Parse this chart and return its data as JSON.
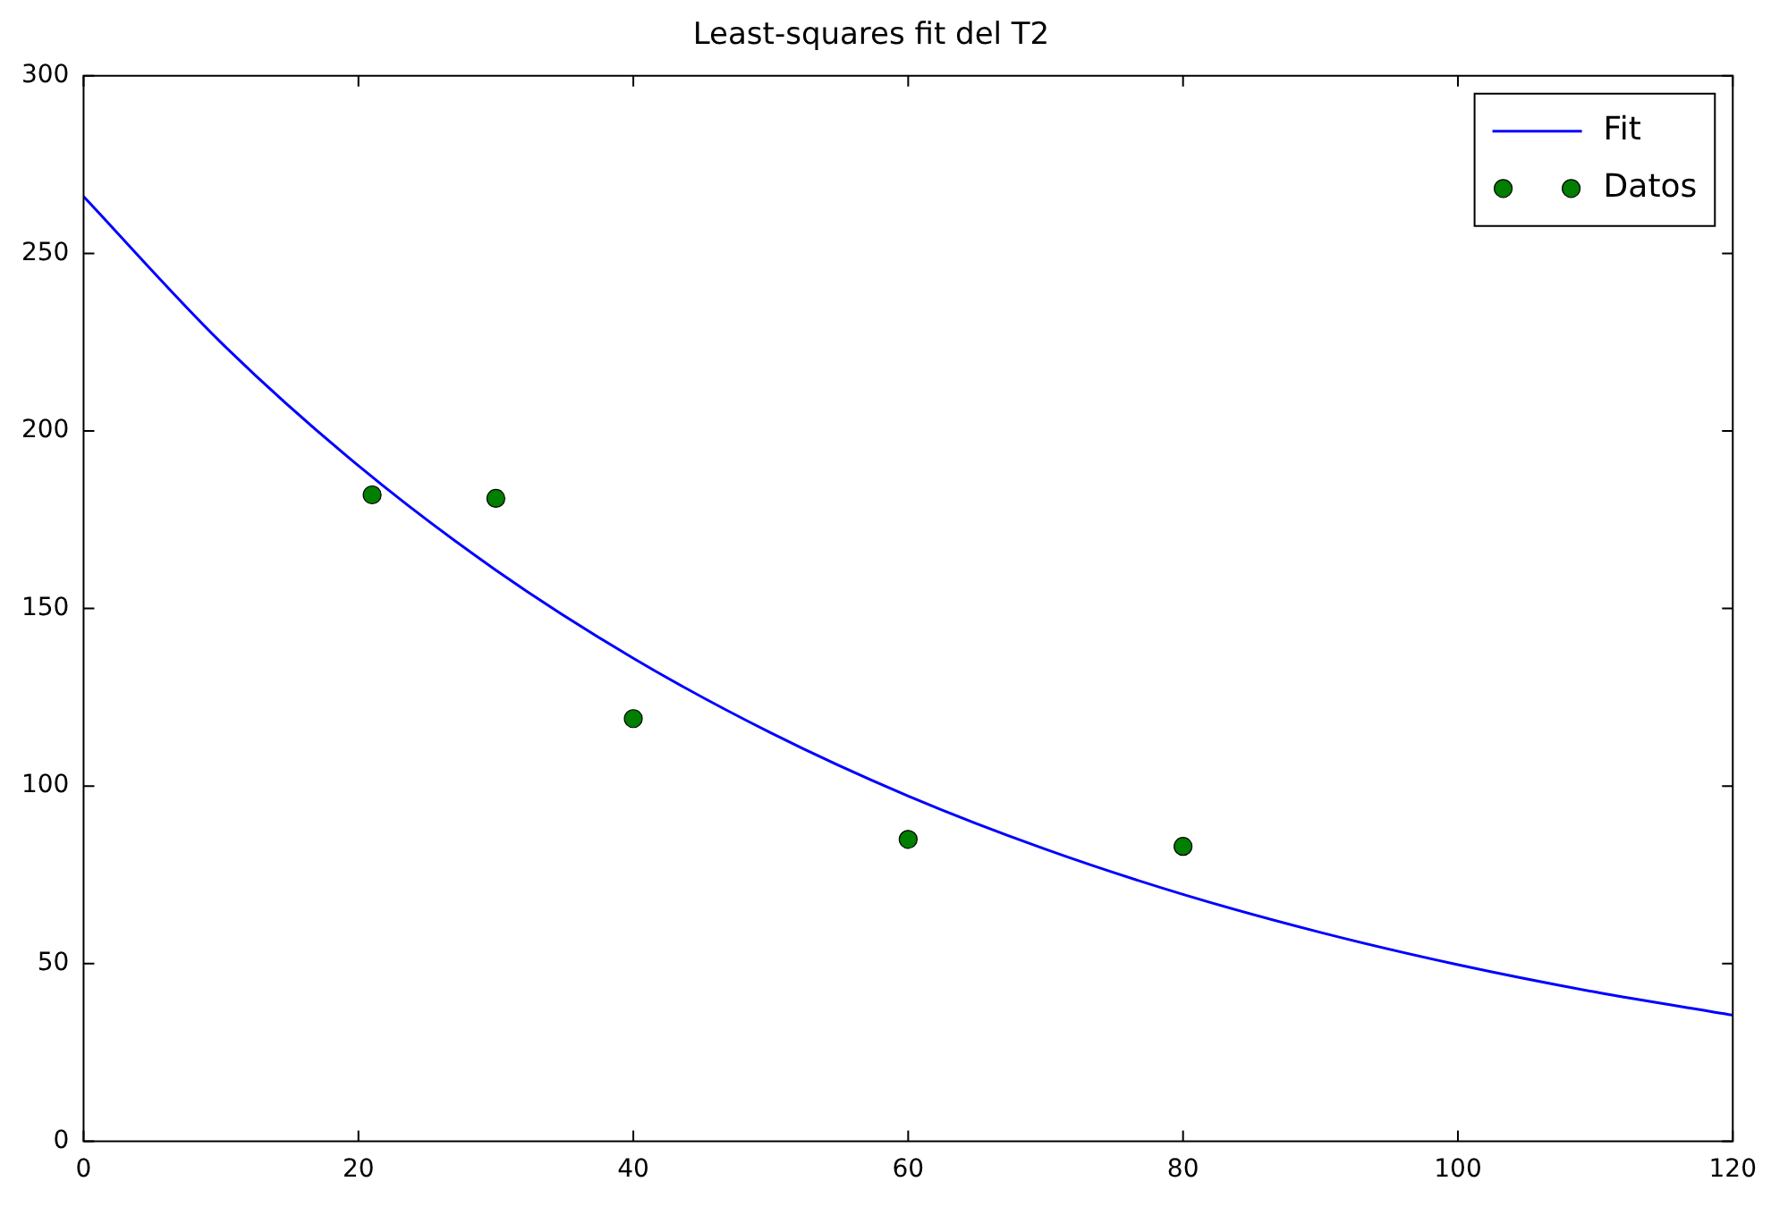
{
  "chart_data": {
    "type": "line",
    "title": "Least-squares fit del T2",
    "series": [
      {
        "name": "Fit",
        "type": "line",
        "color": "#0000ff",
        "marker": "none",
        "x": [
          0,
          10,
          20,
          30,
          40,
          50,
          60,
          70,
          80,
          90,
          100,
          110,
          120
        ],
        "values": [
          266,
          224.9,
          190.2,
          160.8,
          136.0,
          115.0,
          97.2,
          82.2,
          69.5,
          58.8,
          49.7,
          42.0,
          35.5
        ]
      },
      {
        "name": "Datos",
        "type": "scatter",
        "color": "#007f00",
        "marker": "circle",
        "x": [
          21,
          30,
          40,
          60,
          80
        ],
        "values": [
          182,
          181,
          119,
          85,
          83
        ]
      }
    ],
    "xlim": [
      0,
      120
    ],
    "xticks": [
      0,
      20,
      40,
      60,
      80,
      100,
      120
    ],
    "ylim": [
      0,
      300
    ],
    "yticks": [
      0,
      50,
      100,
      150,
      200,
      250,
      300
    ],
    "grid": false,
    "legend": "top right"
  }
}
